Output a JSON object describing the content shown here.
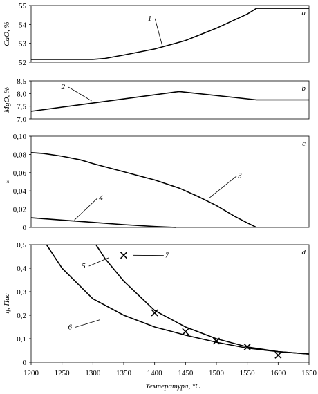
{
  "chart_data": {
    "type": "line",
    "xlabel": "Температура, °С",
    "xlim": [
      1200,
      1650
    ],
    "xticks": [
      "1200",
      "1250",
      "1300",
      "1350",
      "1400",
      "1450",
      "1500",
      "1550",
      "1600",
      "1650"
    ],
    "panels": [
      {
        "letter": "a",
        "ylabel": "CaO, %",
        "ylim": [
          52,
          55
        ],
        "yticks": [
          "52",
          "53",
          "54",
          "55"
        ],
        "series": [
          {
            "name": "1",
            "label_at": [
              1395,
              54.2
            ],
            "leader_to": [
              1413,
              52.8
            ],
            "x": [
              1200,
              1300,
              1320,
              1350,
              1400,
              1450,
              1500,
              1550,
              1565,
              1650
            ],
            "y": [
              52.15,
              52.15,
              52.2,
              52.38,
              52.7,
              53.15,
              53.8,
              54.55,
              54.85,
              54.85
            ]
          }
        ]
      },
      {
        "letter": "b",
        "ylabel": "MgO, %",
        "ylim": [
          7.0,
          8.5
        ],
        "yticks": [
          "7,0",
          "7,5",
          "8,0",
          "8,5"
        ],
        "series": [
          {
            "name": "2",
            "label_at": [
              1255,
              8.17
            ],
            "leader_to": [
              1298,
              7.71
            ],
            "x": [
              1200,
              1440,
              1565,
              1650
            ],
            "y": [
              7.3,
              8.08,
              7.75,
              7.75
            ]
          }
        ]
      },
      {
        "letter": "c",
        "ylabel": "ε",
        "ylim": [
          0,
          0.1
        ],
        "yticks": [
          "0",
          "0,02",
          "0,04",
          "0,06",
          "0,08",
          "0,10"
        ],
        "series": [
          {
            "name": "3",
            "label_at": [
              1535,
              0.054
            ],
            "leader_to": [
              1488,
              0.032
            ],
            "x": [
              1200,
              1220,
              1250,
              1280,
              1300,
              1350,
              1400,
              1440,
              1470,
              1500,
              1530,
              1550,
              1565
            ],
            "y": [
              0.082,
              0.081,
              0.078,
              0.074,
              0.07,
              0.061,
              0.052,
              0.043,
              0.034,
              0.024,
              0.012,
              0.005,
              0
            ]
          },
          {
            "name": "4",
            "label_at": [
              1310,
              0.03
            ],
            "leader_to": [
              1270,
              0.008
            ],
            "x": [
              1200,
              1250,
              1300,
              1350,
              1400,
              1435
            ],
            "y": [
              0.0105,
              0.008,
              0.0055,
              0.003,
              0.001,
              0
            ]
          }
        ]
      },
      {
        "letter": "d",
        "ylabel": "η, Пас",
        "ylim": [
          0,
          0.5
        ],
        "yticks": [
          "0",
          "0,1",
          "0,2",
          "0,3",
          "0,4",
          "0,5"
        ],
        "series": [
          {
            "name": "5",
            "label_at": [
              1288,
              0.4
            ],
            "leader_to": [
              1326,
              0.445
            ],
            "x": [
              1305,
              1320,
              1350,
              1400,
              1450,
              1500,
              1550,
              1600,
              1650
            ],
            "y": [
              0.5,
              0.44,
              0.345,
              0.22,
              0.15,
              0.1,
              0.065,
              0.045,
              0.035
            ]
          },
          {
            "name": "6",
            "label_at": [
              1266,
              0.14
            ],
            "leader_to": [
              1311,
              0.18
            ],
            "x": [
              1225,
              1250,
              1300,
              1350,
              1400,
              1450,
              1500,
              1550,
              1600,
              1650
            ],
            "y": [
              0.5,
              0.4,
              0.27,
              0.2,
              0.15,
              0.115,
              0.085,
              0.06,
              0.045,
              0.035
            ]
          },
          {
            "name": "7",
            "marker": "x",
            "label_at": [
              1417,
              0.445
            ],
            "leader_to": [
              1365,
              0.455
            ],
            "x": [
              1350,
              1400,
              1450,
              1500,
              1550,
              1600
            ],
            "y": [
              0.455,
              0.21,
              0.13,
              0.09,
              0.065,
              0.03
            ]
          }
        ]
      }
    ]
  }
}
